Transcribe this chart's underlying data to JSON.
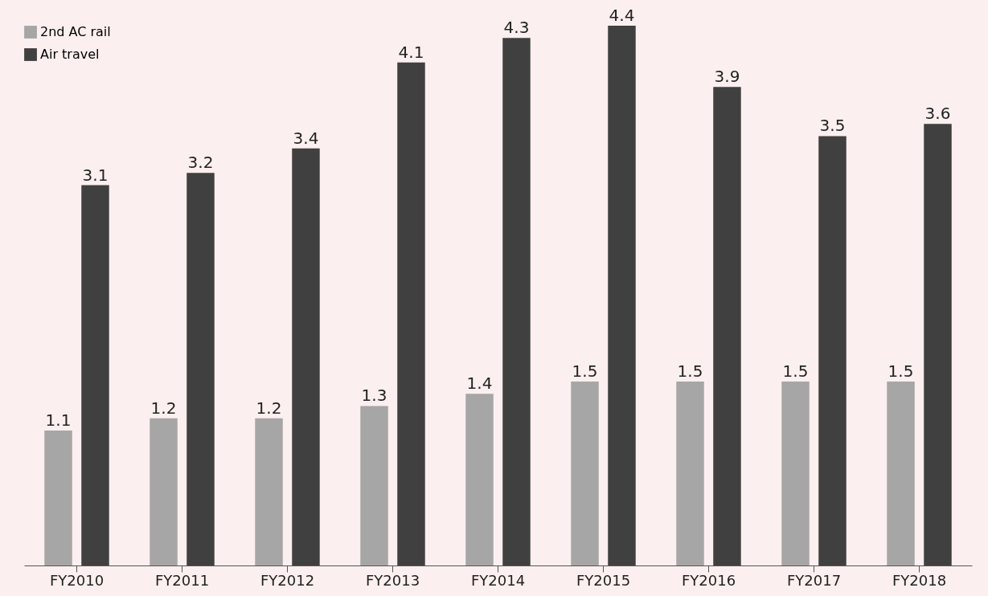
{
  "chart_data": {
    "type": "bar",
    "categories": [
      "FY2010",
      "FY2011",
      "FY2012",
      "FY2013",
      "FY2014",
      "FY2015",
      "FY2016",
      "FY2017",
      "FY2018"
    ],
    "series": [
      {
        "name": "2nd AC rail",
        "color": "#a6a6a6",
        "values": [
          1.1,
          1.2,
          1.2,
          1.3,
          1.4,
          1.5,
          1.5,
          1.5,
          1.5
        ]
      },
      {
        "name": "Air travel",
        "color": "#404040",
        "values": [
          3.1,
          3.2,
          3.4,
          4.1,
          4.3,
          4.4,
          3.9,
          3.5,
          3.6
        ]
      }
    ],
    "data_labels": true,
    "legend": "top left",
    "grid": false
  }
}
